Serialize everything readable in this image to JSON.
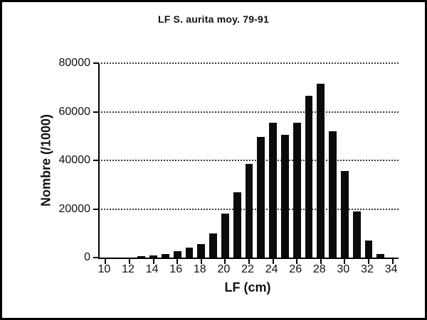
{
  "figure": {
    "background": "#ffffff",
    "frame_color": "#000000",
    "bar_color": "#0b0b0b",
    "grid_color": "#3a3a3a"
  },
  "chart_data": {
    "type": "bar",
    "title": "LF S. aurita moy. 79-91",
    "xlabel": "LF (cm)",
    "ylabel": "Nombre (/1000)",
    "x": [
      13,
      14,
      15,
      16,
      17,
      18,
      19,
      20,
      21,
      22,
      23,
      24,
      25,
      26,
      27,
      28,
      29,
      30,
      31,
      32,
      33
    ],
    "values": [
      500,
      1000,
      1500,
      2500,
      4000,
      5500,
      10000,
      18000,
      27000,
      38500,
      49500,
      55500,
      50500,
      55500,
      66500,
      71500,
      52000,
      35500,
      19000,
      7000,
      1500
    ],
    "bar_width": 0.65,
    "xlim": [
      9.5,
      34.5
    ],
    "ylim": [
      0,
      80000
    ],
    "x_ticks": [
      10,
      12,
      14,
      16,
      18,
      20,
      22,
      24,
      26,
      28,
      30,
      32,
      34
    ],
    "y_ticks": [
      0,
      20000,
      40000,
      60000,
      80000
    ],
    "grid": "horizontal dotted at non-zero y ticks",
    "legend": "none"
  }
}
